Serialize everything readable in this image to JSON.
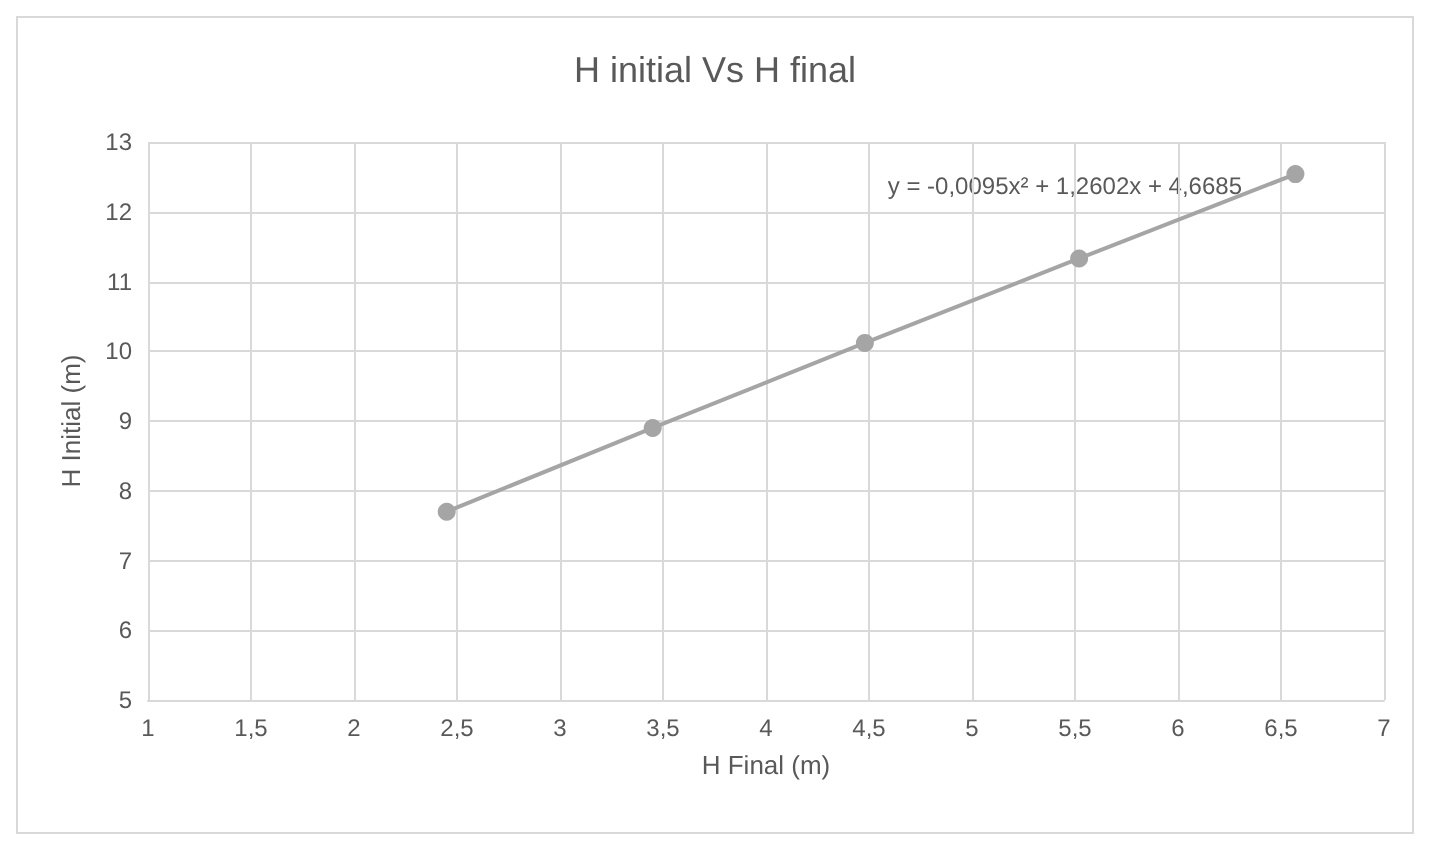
{
  "chart_data": {
    "type": "line",
    "title": "H initial Vs H final",
    "xlabel": "H Final (m)",
    "ylabel": "H Initial (m)",
    "x": [
      2.45,
      3.45,
      4.48,
      5.52,
      6.57
    ],
    "series": [
      {
        "color": "#a5a5a5",
        "values": [
          7.7,
          8.9,
          10.12,
          11.33,
          12.54
        ]
      }
    ],
    "xlim": [
      1,
      7
    ],
    "xticks": [
      1,
      {
        "value": 1.5,
        "label": "1,5"
      },
      2,
      {
        "value": 2.5,
        "label": "2,5"
      },
      3,
      {
        "value": 3.5,
        "label": "3,5"
      },
      4,
      {
        "value": 4.5,
        "label": "4,5"
      },
      5,
      {
        "value": 5.5,
        "label": "5,5"
      },
      6,
      {
        "value": 6.5,
        "label": "6,5"
      },
      7
    ],
    "ylim": [
      5,
      13
    ],
    "yticks": [
      5,
      6,
      7,
      8,
      9,
      10,
      11,
      12,
      13
    ],
    "grid": true,
    "marker": "circle",
    "line_style": "solid",
    "annotations": [
      "y = -0,0095x² + 1,2602x + 4,6685"
    ]
  }
}
